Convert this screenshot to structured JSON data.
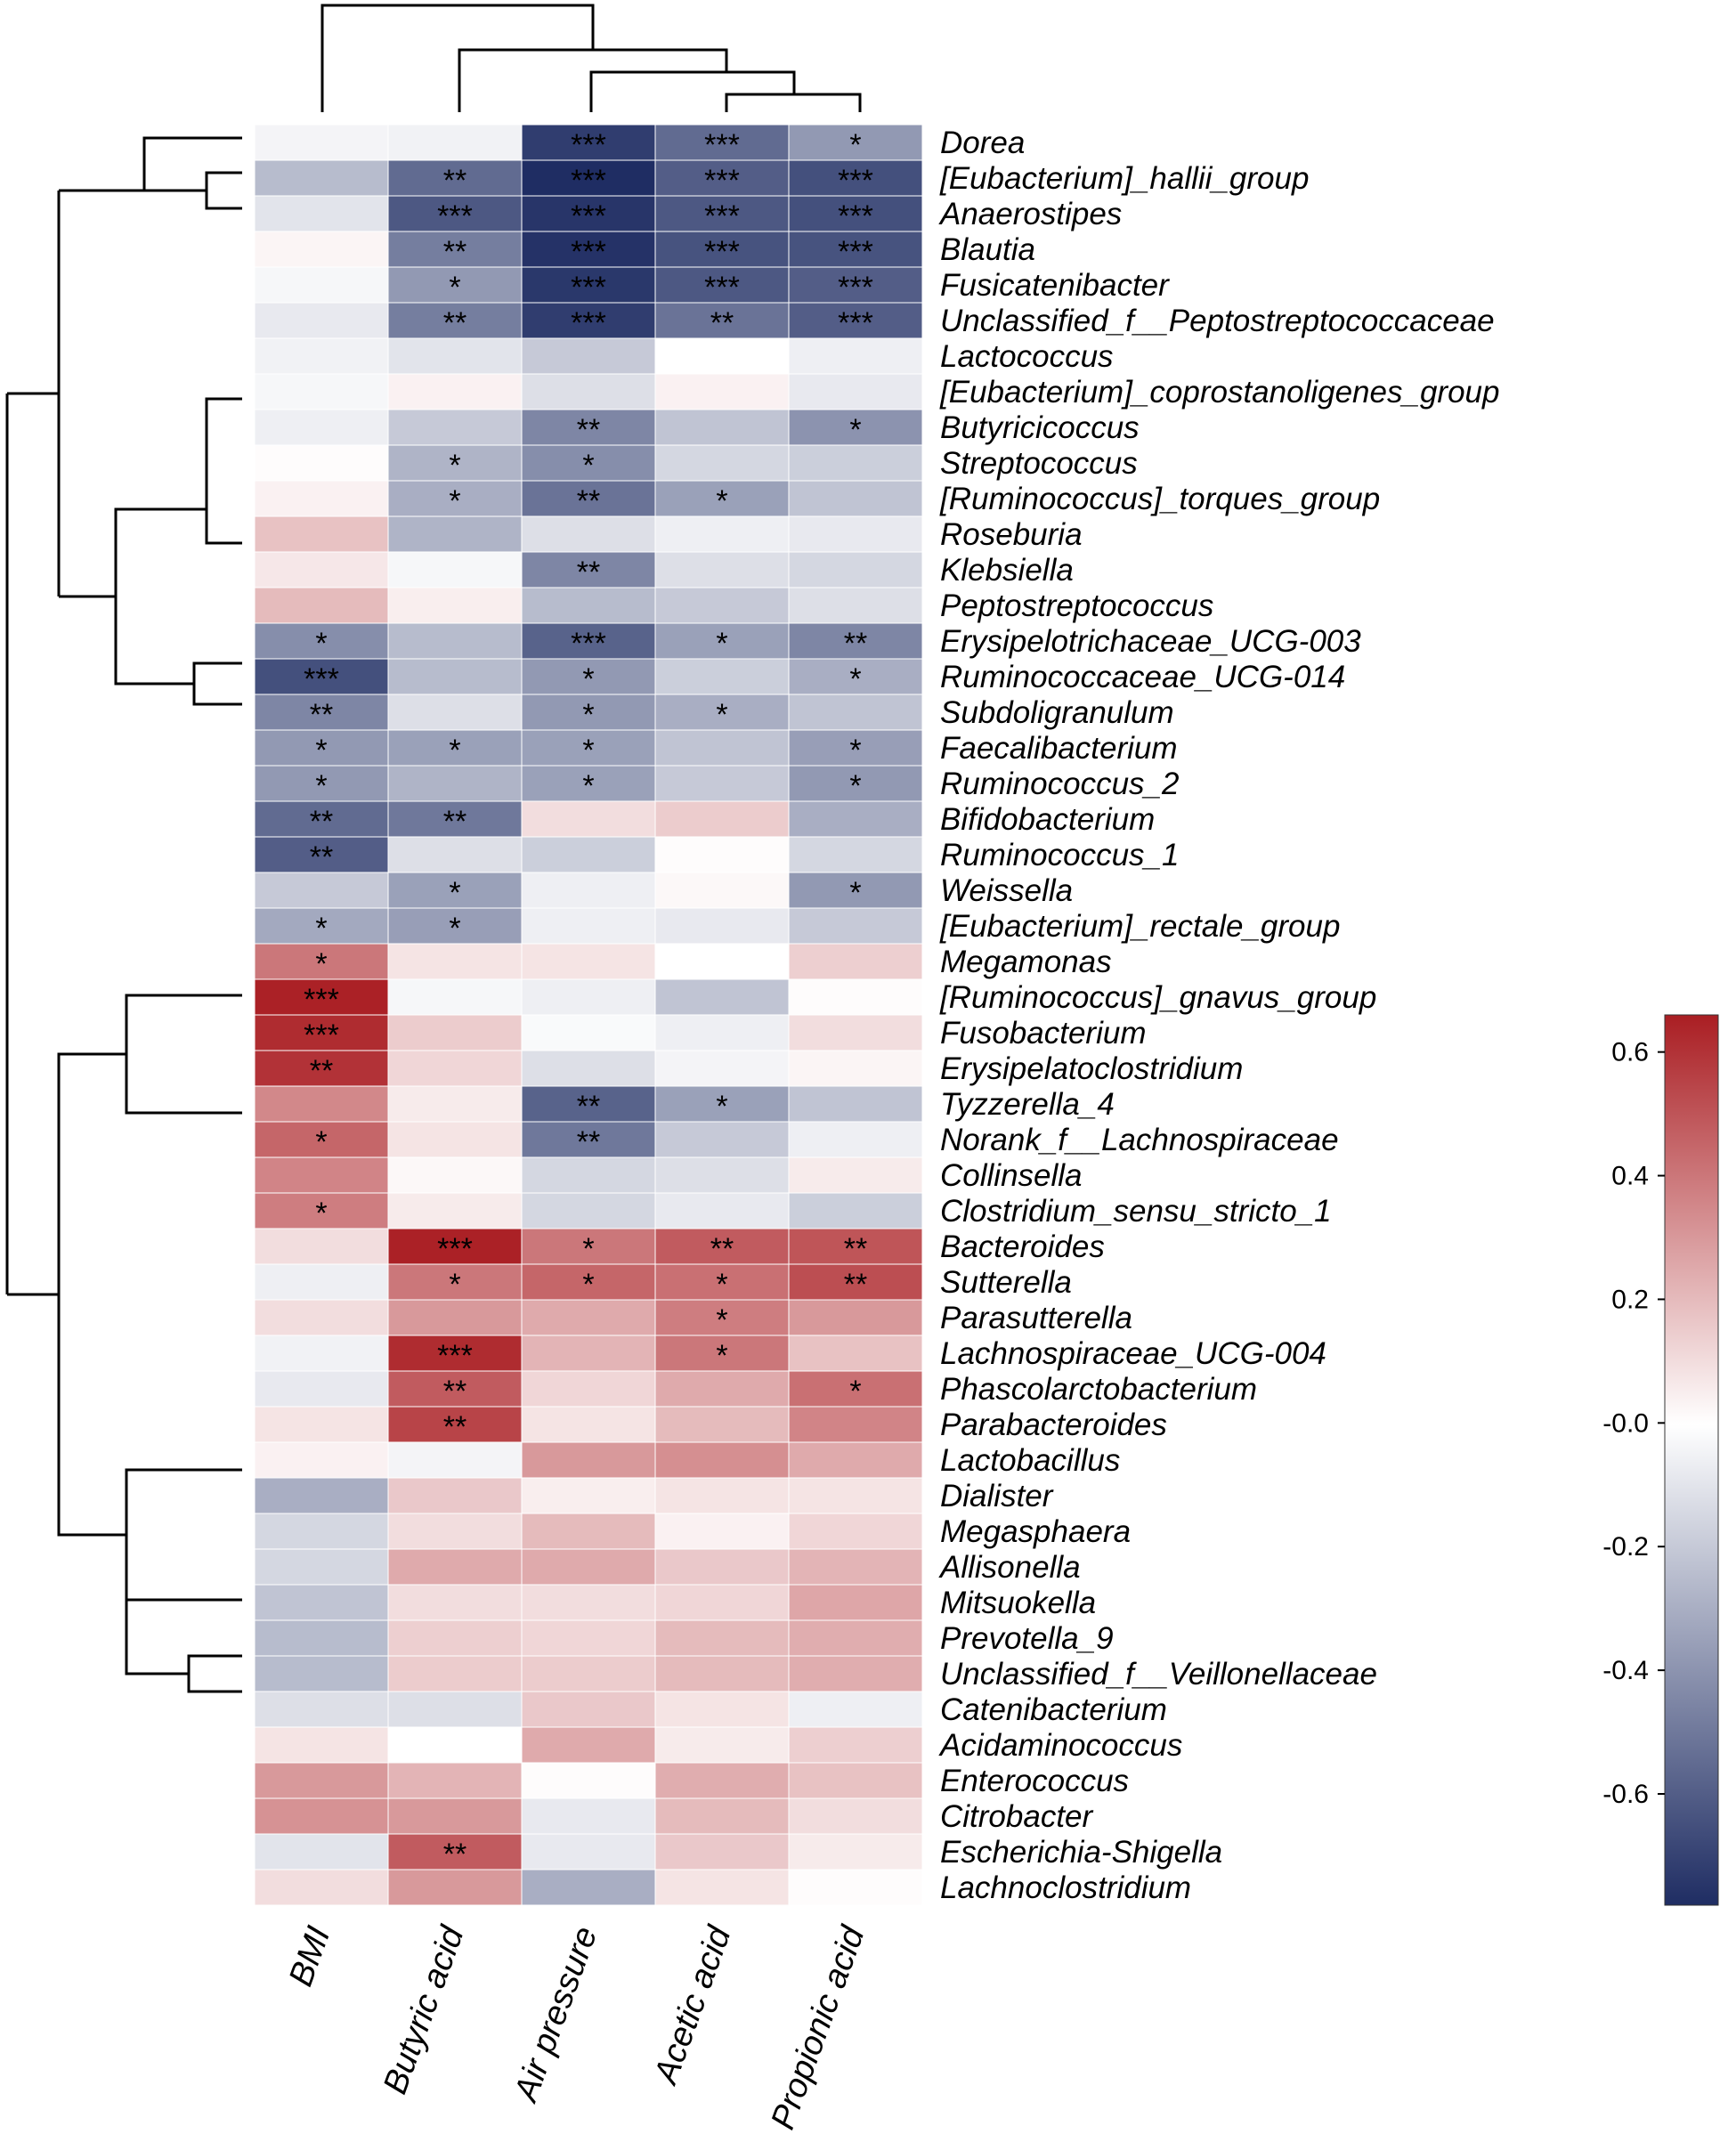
{
  "chart_data": {
    "type": "heatmap",
    "title": "",
    "columns": [
      "BMI",
      "Butyric acid",
      "Air pressure",
      "Acetic acid",
      "Propionic acid"
    ],
    "rows": [
      "Dorea",
      "[Eubacterium]_hallii_group",
      "Anaerostipes",
      "Blautia",
      "Fusicatenibacter",
      "Unclassified_f__Peptostreptococcaceae",
      "Lactococcus",
      "[Eubacterium]_coprostanoligenes_group",
      "Butyricicoccus",
      "Streptococcus",
      "[Ruminococcus]_torques_group",
      "Roseburia",
      "Klebsiella",
      "Peptostreptococcus",
      "Erysipelotrichaceae_UCG-003",
      "Ruminococcaceae_UCG-014",
      "Subdoligranulum",
      "Faecalibacterium",
      "Ruminococcus_2",
      "Bifidobacterium",
      "Ruminococcus_1",
      "Weissella",
      "[Eubacterium]_rectale_group",
      "Megamonas",
      "[Ruminococcus]_gnavus_group",
      "Fusobacterium",
      "Erysipelatoclostridium",
      "Tyzzerella_4",
      "Norank_f__Lachnospiraceae",
      "Collinsella",
      "Clostridium_sensu_stricto_1",
      "Bacteroides",
      "Sutterella",
      "Parasutterella",
      "Lachnospiraceae_UCG-004",
      "Phascolarctobacterium",
      "Parabacteroides",
      "Lactobacillus",
      "Dialister",
      "Megasphaera",
      "Allisonella",
      "Mitsuokella",
      "Prevotella_9",
      "Unclassified_f__Veillonellaceae",
      "Catenibacterium",
      "Acidaminococcus",
      "Enterococcus",
      "Citrobacter",
      "Escherichia-Shigella",
      "Lachnoclostridium"
    ],
    "values": [
      [
        -0.04,
        -0.05,
        -0.72,
        -0.55,
        -0.38
      ],
      [
        -0.25,
        -0.55,
        -0.78,
        -0.6,
        -0.65
      ],
      [
        -0.1,
        -0.62,
        -0.75,
        -0.62,
        -0.65
      ],
      [
        0.03,
        -0.48,
        -0.76,
        -0.64,
        -0.64
      ],
      [
        -0.03,
        -0.38,
        -0.74,
        -0.62,
        -0.6
      ],
      [
        -0.08,
        -0.48,
        -0.72,
        -0.52,
        -0.6
      ],
      [
        -0.05,
        -0.1,
        -0.2,
        0.0,
        -0.06
      ],
      [
        -0.03,
        0.04,
        -0.12,
        0.04,
        -0.08
      ],
      [
        -0.06,
        -0.2,
        -0.45,
        -0.22,
        -0.4
      ],
      [
        0.01,
        -0.28,
        -0.42,
        -0.15,
        -0.18
      ],
      [
        0.04,
        -0.3,
        -0.52,
        -0.35,
        -0.22
      ],
      [
        0.18,
        -0.28,
        -0.12,
        -0.06,
        -0.08
      ],
      [
        0.07,
        -0.03,
        -0.45,
        -0.12,
        -0.15
      ],
      [
        0.2,
        0.05,
        -0.25,
        -0.2,
        -0.12
      ],
      [
        -0.42,
        -0.25,
        -0.58,
        -0.35,
        -0.45
      ],
      [
        -0.65,
        -0.25,
        -0.38,
        -0.18,
        -0.3
      ],
      [
        -0.45,
        -0.12,
        -0.38,
        -0.3,
        -0.22
      ],
      [
        -0.38,
        -0.35,
        -0.35,
        -0.22,
        -0.36
      ],
      [
        -0.38,
        -0.28,
        -0.35,
        -0.2,
        -0.38
      ],
      [
        -0.55,
        -0.5,
        0.1,
        0.15,
        -0.3
      ],
      [
        -0.6,
        -0.12,
        -0.18,
        0.01,
        -0.15
      ],
      [
        -0.2,
        -0.35,
        -0.06,
        0.02,
        -0.38
      ],
      [
        -0.32,
        -0.36,
        -0.06,
        -0.08,
        -0.2
      ],
      [
        0.4,
        0.08,
        0.08,
        0.0,
        0.14
      ],
      [
        0.65,
        -0.03,
        -0.06,
        -0.22,
        0.01
      ],
      [
        0.62,
        0.15,
        -0.02,
        -0.06,
        0.1
      ],
      [
        0.6,
        0.12,
        -0.12,
        -0.04,
        0.03
      ],
      [
        0.35,
        0.06,
        -0.58,
        -0.35,
        -0.22
      ],
      [
        0.45,
        0.08,
        -0.5,
        -0.2,
        -0.06
      ],
      [
        0.36,
        0.02,
        -0.15,
        -0.12,
        0.06
      ],
      [
        0.38,
        0.06,
        -0.15,
        -0.08,
        -0.18
      ],
      [
        0.1,
        0.65,
        0.4,
        0.48,
        0.5
      ],
      [
        -0.06,
        0.4,
        0.45,
        0.42,
        0.52
      ],
      [
        0.1,
        0.3,
        0.25,
        0.38,
        0.3
      ],
      [
        -0.05,
        0.62,
        0.22,
        0.4,
        0.18
      ],
      [
        -0.08,
        0.48,
        0.12,
        0.25,
        0.42
      ],
      [
        0.08,
        0.55,
        0.08,
        0.2,
        0.36
      ],
      [
        0.04,
        -0.04,
        0.3,
        0.33,
        0.25
      ],
      [
        -0.3,
        0.16,
        0.05,
        0.08,
        0.08
      ],
      [
        -0.15,
        0.1,
        0.2,
        0.04,
        0.12
      ],
      [
        -0.15,
        0.25,
        0.25,
        0.16,
        0.22
      ],
      [
        -0.22,
        0.1,
        0.1,
        0.12,
        0.26
      ],
      [
        -0.25,
        0.14,
        0.12,
        0.2,
        0.24
      ],
      [
        -0.25,
        0.15,
        0.15,
        0.2,
        0.24
      ],
      [
        -0.12,
        -0.12,
        0.16,
        0.08,
        -0.06
      ],
      [
        0.08,
        0.0,
        0.25,
        0.06,
        0.14
      ],
      [
        0.3,
        0.22,
        0.01,
        0.24,
        0.18
      ],
      [
        0.32,
        0.3,
        -0.08,
        0.2,
        0.1
      ],
      [
        -0.1,
        0.48,
        -0.08,
        0.16,
        0.06
      ],
      [
        0.1,
        0.3,
        -0.3,
        0.08,
        0.01
      ]
    ],
    "significance": [
      [
        "",
        "",
        "***",
        "***",
        "*"
      ],
      [
        "",
        "**",
        "***",
        "***",
        "***"
      ],
      [
        "",
        "***",
        "***",
        "***",
        "***"
      ],
      [
        "",
        "**",
        "***",
        "***",
        "***"
      ],
      [
        "",
        "*",
        "***",
        "***",
        "***"
      ],
      [
        "",
        "**",
        "***",
        "**",
        "***"
      ],
      [
        "",
        "",
        "",
        "",
        ""
      ],
      [
        "",
        "",
        "",
        "",
        ""
      ],
      [
        "",
        "",
        "**",
        "",
        "*"
      ],
      [
        "",
        "*",
        "*",
        "",
        ""
      ],
      [
        "",
        "*",
        "**",
        "*",
        ""
      ],
      [
        "",
        "",
        "",
        "",
        ""
      ],
      [
        "",
        "",
        "**",
        "",
        ""
      ],
      [
        "",
        "",
        "",
        "",
        ""
      ],
      [
        "*",
        "",
        "***",
        "*",
        "**"
      ],
      [
        "***",
        "",
        "*",
        "",
        "*"
      ],
      [
        "**",
        "",
        "*",
        "*",
        ""
      ],
      [
        "*",
        "*",
        "*",
        "",
        "*"
      ],
      [
        "*",
        "",
        "*",
        "",
        "*"
      ],
      [
        "**",
        "**",
        "",
        "",
        ""
      ],
      [
        "**",
        "",
        "",
        "",
        ""
      ],
      [
        "",
        "*",
        "",
        "",
        "*"
      ],
      [
        "*",
        "*",
        "",
        "",
        ""
      ],
      [
        "*",
        "",
        "",
        "",
        ""
      ],
      [
        "***",
        "",
        "",
        "",
        ""
      ],
      [
        "***",
        "",
        "",
        "",
        ""
      ],
      [
        "**",
        "",
        "",
        "",
        ""
      ],
      [
        "",
        "",
        "**",
        "*",
        ""
      ],
      [
        "*",
        "",
        "**",
        "",
        ""
      ],
      [
        "",
        "",
        "",
        "",
        ""
      ],
      [
        "*",
        "",
        "",
        "",
        ""
      ],
      [
        "",
        "***",
        "*",
        "**",
        "**"
      ],
      [
        "",
        "*",
        "*",
        "*",
        "**"
      ],
      [
        "",
        "",
        "",
        "*",
        ""
      ],
      [
        "",
        "***",
        "",
        "*",
        ""
      ],
      [
        "",
        "**",
        "",
        "",
        "*"
      ],
      [
        "",
        "**",
        "",
        "",
        ""
      ],
      [
        "",
        "",
        "",
        "",
        ""
      ],
      [
        "",
        "",
        "",
        "",
        ""
      ],
      [
        "",
        "",
        "",
        "",
        ""
      ],
      [
        "",
        "",
        "",
        "",
        ""
      ],
      [
        "",
        "",
        "",
        "",
        ""
      ],
      [
        "",
        "",
        "",
        "",
        ""
      ],
      [
        "",
        "",
        "",
        "",
        ""
      ],
      [
        "",
        "",
        "",
        "",
        ""
      ],
      [
        "",
        "",
        "",
        "",
        ""
      ],
      [
        "",
        "",
        "",
        "",
        ""
      ],
      [
        "",
        "",
        "",
        "",
        ""
      ],
      [
        "",
        "**",
        "",
        "",
        ""
      ],
      [
        "",
        "",
        "",
        "",
        ""
      ]
    ],
    "colorbar": {
      "range": [
        -0.78,
        0.66
      ],
      "ticks": [
        0.6,
        0.4,
        0.2,
        -0.0,
        -0.2,
        -0.4,
        -0.6
      ],
      "tick_labels": [
        "0.6",
        "0.4",
        "0.2",
        "-0.0",
        "-0.2",
        "-0.4",
        "-0.6"
      ],
      "low_color": "#1f2d63",
      "mid_color": "#ffffff",
      "high_color": "#aa1e23"
    },
    "column_dendrogram": "BMI | (Butyric acid | (Air pressure | (Acetic acid, Propionic acid)))",
    "row_dendrogram": "hierarchical clustering of 50 genera"
  }
}
